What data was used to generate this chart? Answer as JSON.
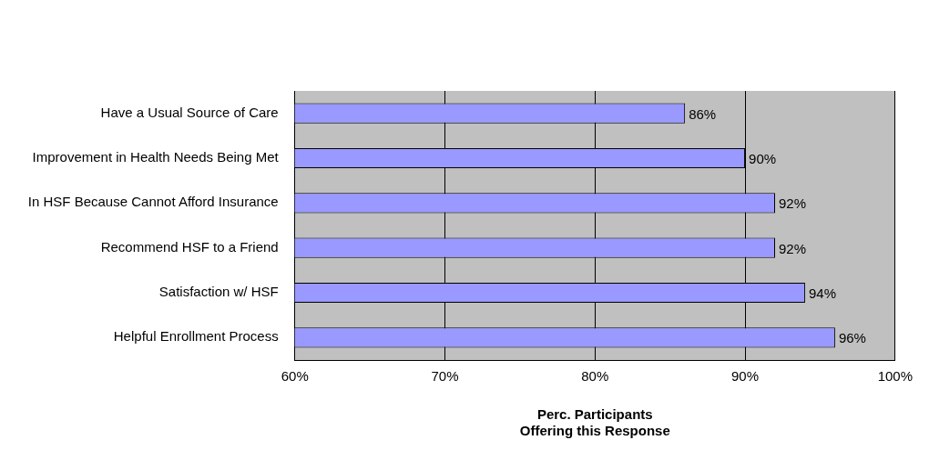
{
  "chart_data": {
    "type": "bar",
    "orientation": "horizontal",
    "xlabel": "Perc. Participants\nOffering this Response",
    "categories": [
      "Have a Usual Source of Care",
      "Improvement in Health Needs Being Met",
      "In HSF Because Cannot Afford Insurance",
      "Recommend HSF to a Friend",
      "Satisfaction w/ HSF",
      "Helpful Enrollment Process"
    ],
    "values": [
      86,
      90,
      92,
      92,
      94,
      96
    ],
    "value_labels": [
      "86%",
      "90%",
      "92%",
      "92%",
      "94%",
      "96%"
    ],
    "color": "#9999ff",
    "xlim": [
      60,
      100
    ],
    "xticks": [
      {
        "value": 60,
        "label": "60%"
      },
      {
        "value": 70,
        "label": "70%"
      },
      {
        "value": 80,
        "label": "80%"
      },
      {
        "value": 90,
        "label": "90%"
      },
      {
        "value": 100,
        "label": "100%"
      }
    ],
    "grid": "x",
    "legend": false
  }
}
